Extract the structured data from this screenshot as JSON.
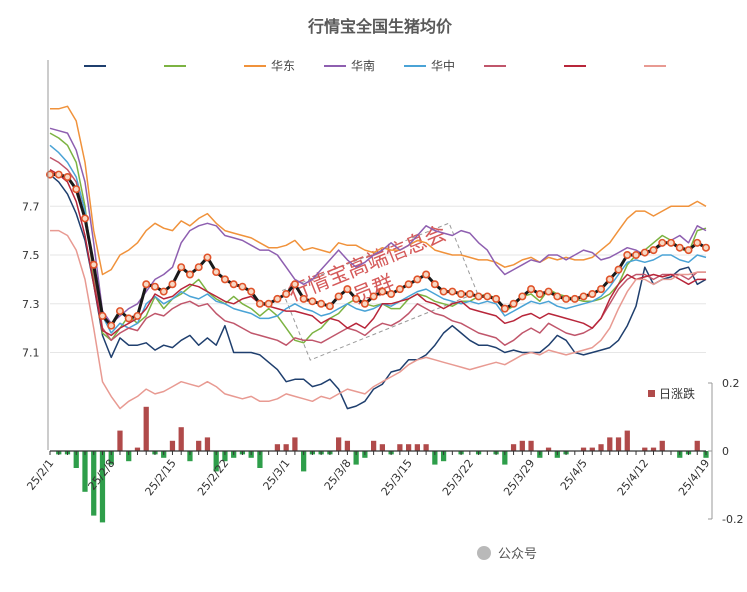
{
  "chart_data": {
    "type": "line",
    "title": "行情宝全国生猪均价",
    "watermark": [
      "行情宝高端信息会",
      "员群"
    ],
    "footer_text": "公众号",
    "x_tick_labels": [
      "25/2/1",
      "25/2/8",
      "25/2/15",
      "25/2/22",
      "25/3/1",
      "25/3/8",
      "25/3/15",
      "25/3/22",
      "25/3/29",
      "25/4/5",
      "25/4/12",
      "25/4/19"
    ],
    "y_left": {
      "ticks": [
        "7.7",
        "7.5",
        "7.3",
        "7.1"
      ],
      "ylim": [
        6.7,
        8.3
      ]
    },
    "y_right": {
      "ticks": [
        "0.2",
        "0",
        "-0.2"
      ],
      "ylim": [
        -0.2,
        0.2
      ]
    },
    "legend_labels": [
      "华东",
      "华南",
      "华中"
    ],
    "bar_legend_label": "日涨跌",
    "colors": {
      "national": "#1a1a1a",
      "national_marker_stroke": "#e0532a",
      "national_marker_fill": "#f7d8c4",
      "up_bar": "#b04a4a",
      "down_bar": "#2e9e4a",
      "watermark": "#d55a5a",
      "title": "#595959",
      "axis_text": "#333333",
      "gridline": "#e6e6e6"
    },
    "national": [
      7.83,
      7.83,
      7.82,
      7.77,
      7.65,
      7.46,
      7.25,
      7.21,
      7.27,
      7.24,
      7.25,
      7.38,
      7.37,
      7.35,
      7.38,
      7.45,
      7.42,
      7.45,
      7.49,
      7.43,
      7.4,
      7.38,
      7.37,
      7.35,
      7.3,
      7.3,
      7.32,
      7.34,
      7.38,
      7.32,
      7.31,
      7.3,
      7.29,
      7.33,
      7.36,
      7.32,
      7.3,
      7.33,
      7.35,
      7.34,
      7.36,
      7.38,
      7.4,
      7.42,
      7.38,
      7.35,
      7.35,
      7.34,
      7.34,
      7.33,
      7.33,
      7.32,
      7.28,
      7.3,
      7.33,
      7.36,
      7.34,
      7.35,
      7.33,
      7.32,
      7.32,
      7.33,
      7.34,
      7.36,
      7.4,
      7.44,
      7.5,
      7.5,
      7.51,
      7.52,
      7.55,
      7.55,
      7.53,
      7.52,
      7.55,
      7.53
    ],
    "series": [
      {
        "name": "",
        "color": "#1f3f6e",
        "values": [
          7.83,
          7.8,
          7.75,
          7.67,
          7.56,
          7.38,
          7.17,
          7.08,
          7.16,
          7.13,
          7.13,
          7.14,
          7.11,
          7.13,
          7.12,
          7.15,
          7.17,
          7.13,
          7.16,
          7.13,
          7.21,
          7.1,
          7.1,
          7.1,
          7.09,
          7.06,
          7.03,
          6.98,
          6.99,
          6.99,
          6.96,
          6.97,
          6.99,
          6.95,
          6.87,
          6.88,
          6.9,
          6.95,
          6.97,
          7.02,
          7.03,
          7.07,
          7.07,
          7.09,
          7.13,
          7.18,
          7.21,
          7.18,
          7.15,
          7.13,
          7.13,
          7.12,
          7.1,
          7.11,
          7.1,
          7.1,
          7.1,
          7.13,
          7.17,
          7.15,
          7.1,
          7.09,
          7.1,
          7.11,
          7.12,
          7.15,
          7.21,
          7.29,
          7.45,
          7.38,
          7.4,
          7.41,
          7.44,
          7.45,
          7.38,
          7.4
        ]
      },
      {
        "name": "",
        "color": "#7cb342",
        "values": [
          8.0,
          7.98,
          7.95,
          7.88,
          7.7,
          7.4,
          7.18,
          7.15,
          7.2,
          7.25,
          7.22,
          7.25,
          7.33,
          7.28,
          7.32,
          7.34,
          7.37,
          7.4,
          7.35,
          7.32,
          7.3,
          7.33,
          7.3,
          7.28,
          7.25,
          7.28,
          7.25,
          7.2,
          7.15,
          7.14,
          7.18,
          7.2,
          7.24,
          7.26,
          7.3,
          7.32,
          7.3,
          7.29,
          7.3,
          7.28,
          7.28,
          7.32,
          7.34,
          7.33,
          7.31,
          7.3,
          7.29,
          7.31,
          7.31,
          7.33,
          7.34,
          7.32,
          7.27,
          7.29,
          7.33,
          7.34,
          7.31,
          7.36,
          7.34,
          7.33,
          7.32,
          7.31,
          7.31,
          7.32,
          7.34,
          7.38,
          7.46,
          7.5,
          7.52,
          7.55,
          7.58,
          7.56,
          7.53,
          7.51,
          7.6,
          7.61
        ]
      },
      {
        "name": "华东",
        "color": "#f0923b",
        "values": [
          8.1,
          8.1,
          8.11,
          8.05,
          7.88,
          7.6,
          7.42,
          7.44,
          7.5,
          7.52,
          7.55,
          7.6,
          7.63,
          7.61,
          7.6,
          7.64,
          7.62,
          7.65,
          7.67,
          7.63,
          7.6,
          7.59,
          7.58,
          7.57,
          7.55,
          7.53,
          7.53,
          7.54,
          7.56,
          7.52,
          7.53,
          7.52,
          7.51,
          7.55,
          7.54,
          7.54,
          7.52,
          7.51,
          7.53,
          7.52,
          7.52,
          7.54,
          7.56,
          7.55,
          7.52,
          7.51,
          7.5,
          7.5,
          7.49,
          7.48,
          7.48,
          7.47,
          7.45,
          7.46,
          7.48,
          7.49,
          7.47,
          7.49,
          7.48,
          7.49,
          7.48,
          7.48,
          7.49,
          7.52,
          7.55,
          7.6,
          7.65,
          7.68,
          7.68,
          7.66,
          7.68,
          7.7,
          7.7,
          7.7,
          7.72,
          7.7
        ]
      },
      {
        "name": "华南",
        "color": "#8e5fb0",
        "values": [
          8.02,
          8.01,
          8.0,
          7.93,
          7.8,
          7.55,
          7.27,
          7.22,
          7.25,
          7.28,
          7.3,
          7.35,
          7.4,
          7.42,
          7.45,
          7.55,
          7.6,
          7.62,
          7.63,
          7.62,
          7.58,
          7.57,
          7.56,
          7.54,
          7.52,
          7.52,
          7.5,
          7.45,
          7.4,
          7.38,
          7.4,
          7.44,
          7.48,
          7.52,
          7.48,
          7.45,
          7.47,
          7.5,
          7.52,
          7.55,
          7.52,
          7.54,
          7.58,
          7.62,
          7.6,
          7.59,
          7.58,
          7.6,
          7.59,
          7.55,
          7.52,
          7.46,
          7.42,
          7.44,
          7.46,
          7.48,
          7.47,
          7.5,
          7.5,
          7.48,
          7.5,
          7.52,
          7.51,
          7.48,
          7.49,
          7.51,
          7.53,
          7.52,
          7.5,
          7.52,
          7.54,
          7.56,
          7.58,
          7.55,
          7.62,
          7.6
        ]
      },
      {
        "name": "华中",
        "color": "#4aa3d6",
        "values": [
          7.95,
          7.92,
          7.88,
          7.82,
          7.68,
          7.45,
          7.25,
          7.18,
          7.22,
          7.2,
          7.22,
          7.3,
          7.33,
          7.3,
          7.32,
          7.35,
          7.33,
          7.32,
          7.34,
          7.31,
          7.3,
          7.28,
          7.27,
          7.26,
          7.24,
          7.24,
          7.25,
          7.28,
          7.3,
          7.28,
          7.27,
          7.25,
          7.26,
          7.28,
          7.3,
          7.28,
          7.27,
          7.28,
          7.3,
          7.29,
          7.31,
          7.33,
          7.35,
          7.36,
          7.34,
          7.32,
          7.31,
          7.3,
          7.31,
          7.3,
          7.31,
          7.3,
          7.25,
          7.27,
          7.29,
          7.31,
          7.3,
          7.31,
          7.29,
          7.28,
          7.29,
          7.3,
          7.31,
          7.33,
          7.37,
          7.42,
          7.47,
          7.48,
          7.47,
          7.48,
          7.5,
          7.5,
          7.48,
          7.47,
          7.5,
          7.49
        ]
      },
      {
        "name": "",
        "color": "#c0566b",
        "values": [
          7.9,
          7.88,
          7.85,
          7.8,
          7.65,
          7.43,
          7.2,
          7.15,
          7.18,
          7.2,
          7.19,
          7.24,
          7.26,
          7.25,
          7.28,
          7.3,
          7.31,
          7.29,
          7.3,
          7.26,
          7.23,
          7.22,
          7.2,
          7.18,
          7.17,
          7.16,
          7.15,
          7.13,
          7.16,
          7.15,
          7.15,
          7.14,
          7.16,
          7.18,
          7.2,
          7.19,
          7.17,
          7.2,
          7.22,
          7.21,
          7.23,
          7.26,
          7.3,
          7.28,
          7.26,
          7.25,
          7.23,
          7.22,
          7.2,
          7.18,
          7.17,
          7.16,
          7.13,
          7.15,
          7.18,
          7.2,
          7.18,
          7.22,
          7.2,
          7.18,
          7.17,
          7.18,
          7.2,
          7.24,
          7.3,
          7.36,
          7.4,
          7.42,
          7.42,
          7.4,
          7.42,
          7.42,
          7.42,
          7.4,
          7.43,
          7.43
        ]
      },
      {
        "name": "",
        "color": "#b8263a",
        "values": [
          7.85,
          7.83,
          7.8,
          7.72,
          7.58,
          7.38,
          7.19,
          7.17,
          7.2,
          7.22,
          7.24,
          7.28,
          7.34,
          7.32,
          7.33,
          7.36,
          7.38,
          7.37,
          7.35,
          7.33,
          7.31,
          7.3,
          7.32,
          7.33,
          7.3,
          7.29,
          7.28,
          7.27,
          7.27,
          7.26,
          7.25,
          7.22,
          7.24,
          7.23,
          7.2,
          7.22,
          7.2,
          7.24,
          7.3,
          7.3,
          7.31,
          7.32,
          7.34,
          7.31,
          7.3,
          7.28,
          7.3,
          7.31,
          7.28,
          7.27,
          7.26,
          7.25,
          7.22,
          7.23,
          7.25,
          7.26,
          7.24,
          7.26,
          7.25,
          7.24,
          7.23,
          7.22,
          7.2,
          7.24,
          7.32,
          7.38,
          7.42,
          7.4,
          7.41,
          7.42,
          7.41,
          7.42,
          7.4,
          7.38,
          7.4,
          7.4
        ]
      },
      {
        "name": "",
        "color": "#e89a92",
        "values": [
          7.6,
          7.6,
          7.58,
          7.52,
          7.4,
          7.2,
          6.98,
          6.92,
          6.87,
          6.9,
          6.92,
          6.95,
          6.93,
          6.94,
          6.96,
          6.98,
          6.97,
          6.96,
          6.98,
          6.96,
          6.93,
          6.92,
          6.91,
          6.92,
          6.9,
          6.9,
          6.91,
          6.93,
          6.92,
          6.91,
          6.9,
          6.92,
          6.91,
          6.93,
          6.95,
          6.94,
          6.93,
          6.96,
          6.98,
          7.0,
          7.02,
          7.05,
          7.07,
          7.08,
          7.07,
          7.06,
          7.05,
          7.04,
          7.03,
          7.04,
          7.05,
          7.06,
          7.05,
          7.07,
          7.09,
          7.1,
          7.09,
          7.11,
          7.1,
          7.09,
          7.1,
          7.11,
          7.12,
          7.15,
          7.2,
          7.28,
          7.35,
          7.4,
          7.4,
          7.38,
          7.4,
          7.4,
          7.42,
          7.42,
          7.43,
          7.43
        ]
      }
    ],
    "daily_change": [
      0,
      -0.01,
      -0.01,
      -0.05,
      -0.12,
      -0.19,
      -0.21,
      -0.04,
      0.06,
      -0.03,
      0.01,
      0.13,
      -0.01,
      -0.02,
      0.03,
      0.07,
      -0.03,
      0.03,
      0.04,
      -0.06,
      -0.03,
      -0.02,
      -0.01,
      -0.02,
      -0.05,
      0,
      0.02,
      0.02,
      0.04,
      -0.06,
      -0.01,
      -0.01,
      -0.01,
      0.04,
      0.03,
      -0.04,
      -0.02,
      0.03,
      0.02,
      -0.01,
      0.02,
      0.02,
      0.02,
      0.02,
      -0.04,
      -0.03,
      0,
      -0.01,
      0,
      -0.01,
      0,
      -0.01,
      -0.04,
      0.02,
      0.03,
      0.03,
      -0.02,
      0.01,
      -0.02,
      -0.01,
      0,
      0.01,
      0.01,
      0.02,
      0.04,
      0.04,
      0.06,
      0,
      0.01,
      0.01,
      0.03,
      0,
      -0.02,
      -0.01,
      0.03,
      -0.02
    ]
  }
}
